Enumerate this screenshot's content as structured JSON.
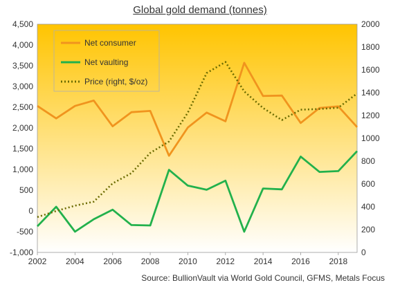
{
  "chart_data": {
    "type": "line",
    "title": "Global gold demand (tonnes)",
    "source": "Source: BullionVault via World Gold Council, GFMS, Metals Focus",
    "x": [
      2002,
      2003,
      2004,
      2005,
      2006,
      2007,
      2008,
      2009,
      2010,
      2011,
      2012,
      2013,
      2014,
      2015,
      2016,
      2017,
      2018,
      2019
    ],
    "x_ticks": [
      "2002",
      "2004",
      "2006",
      "2008",
      "2010",
      "2012",
      "2014",
      "2016",
      "2018"
    ],
    "y_left": {
      "range": [
        -1000,
        4500
      ],
      "ticks": [
        "-1,000",
        "-500",
        "0",
        "500",
        "1,000",
        "1,500",
        "2,000",
        "2,500",
        "3,000",
        "3,500",
        "4,000",
        "4,500"
      ]
    },
    "y_right": {
      "range": [
        0,
        2000
      ],
      "ticks": [
        "0",
        "200",
        "400",
        "600",
        "800",
        "1000",
        "1200",
        "1400",
        "1600",
        "1800",
        "2000"
      ]
    },
    "series": [
      {
        "name": "Net consumer",
        "axis": "left",
        "style": "solid",
        "color": "#F0941E",
        "values": [
          2530,
          2230,
          2530,
          2660,
          2040,
          2380,
          2410,
          1330,
          2010,
          2370,
          2160,
          3570,
          2770,
          2780,
          2120,
          2480,
          2520,
          2020
        ]
      },
      {
        "name": "Net vaulting",
        "axis": "left",
        "style": "solid",
        "color": "#22B14C",
        "values": [
          -370,
          100,
          -500,
          -200,
          30,
          -340,
          -350,
          990,
          610,
          510,
          730,
          -500,
          540,
          520,
          1310,
          940,
          960,
          1440
        ]
      },
      {
        "name": "Price (right, $/oz)",
        "axis": "right",
        "style": "dotted",
        "color": "#6B6B00",
        "values": [
          310,
          363,
          410,
          445,
          604,
          695,
          872,
          972,
          1225,
          1572,
          1669,
          1411,
          1266,
          1160,
          1251,
          1257,
          1268,
          1393
        ]
      }
    ],
    "legend_position": "top-left",
    "grid": false,
    "background_gradient": [
      "#FFC400",
      "#FFFFFF"
    ]
  }
}
